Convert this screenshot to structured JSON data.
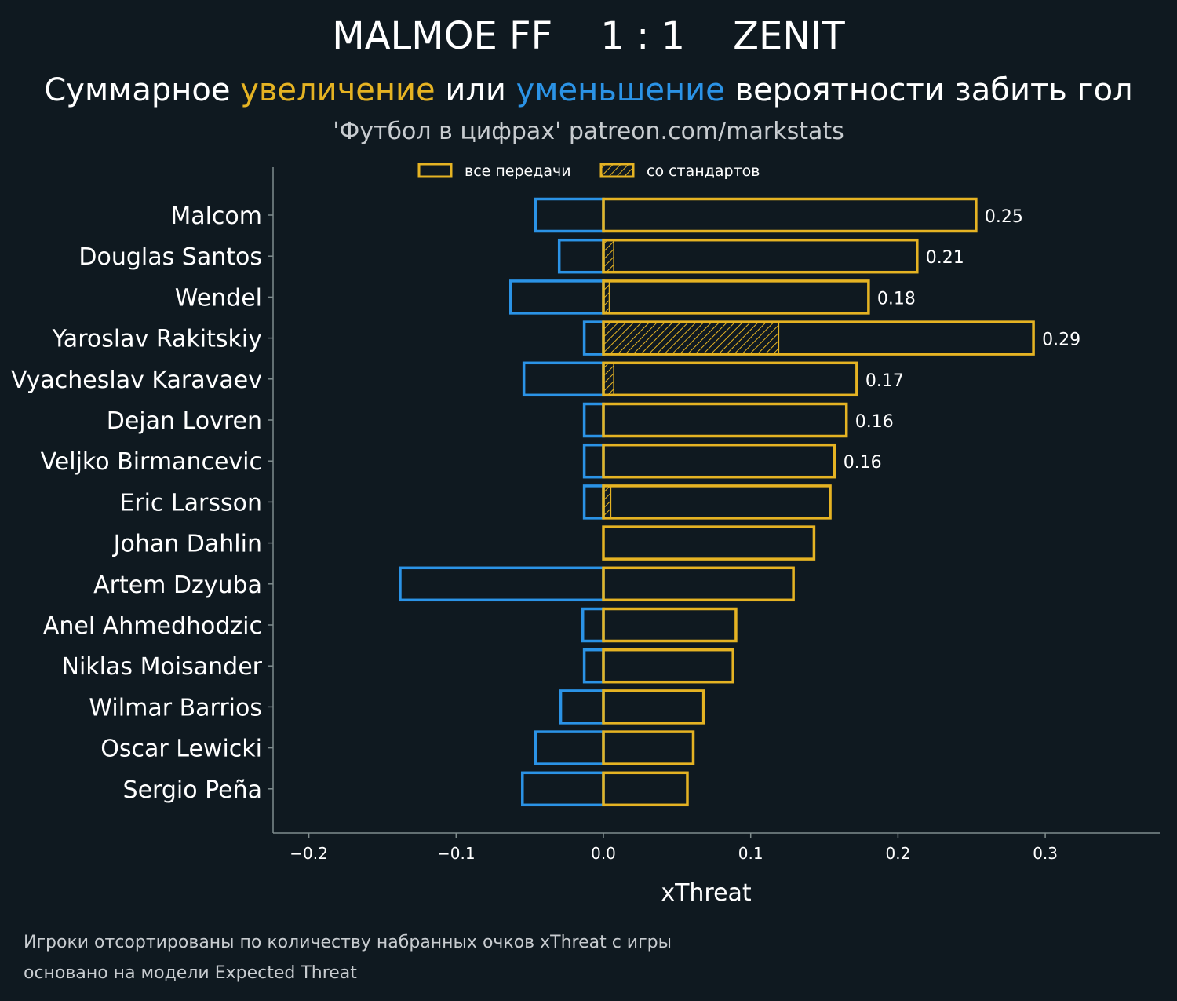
{
  "header": {
    "title": "MALMOE FF    1 : 1    ZENIT",
    "subtitle_part1": "Суммарное ",
    "subtitle_increase": "увеличение",
    "subtitle_part2": " или ",
    "subtitle_decrease": "уменьшение",
    "subtitle_part3": " вероятности забить гол",
    "source": "'Футбол в цифрах' patreon.com/markstats"
  },
  "footer": {
    "line1": "Игроки отсортированы по количеству набранных очков xThreat с игры",
    "line2": "основано на модели Expected Threat"
  },
  "colors": {
    "background": "#0f1920",
    "positive": "#e5b323",
    "negative": "#2b93e6",
    "axis": "#7f8c8d",
    "text": "#ffffff",
    "muted": "#c8ccd0"
  },
  "chart_data": {
    "type": "bar",
    "orientation": "horizontal",
    "xlabel": "xThreat",
    "xlim": [
      -0.225,
      0.378
    ],
    "xticks": [
      -0.2,
      -0.1,
      0.0,
      0.1,
      0.2,
      0.3
    ],
    "xtick_labels": [
      "−0.2",
      "−0.1",
      "0.0",
      "0.1",
      "0.2",
      "0.3"
    ],
    "legend": {
      "position": "top",
      "entries": [
        {
          "label": "все передачи",
          "style": "outline"
        },
        {
          "label": "со стандартов",
          "style": "hatched"
        }
      ]
    },
    "categories": [
      "Malcom",
      "Douglas Santos",
      "Wendel",
      "Yaroslav Rakitskiy",
      "Vyacheslav Karavaev",
      "Dejan Lovren",
      "Veljko Birmancevic",
      "Eric Larsson",
      "Johan Dahlin",
      "Artem Dzyuba",
      "Anel Ahmedhodzic",
      "Niklas Moisander",
      "Wilmar Barrios",
      "Oscar Lewicki",
      "Sergio Peña"
    ],
    "series": [
      {
        "name": "увеличение (все передачи)",
        "values": [
          0.253,
          0.213,
          0.18,
          0.292,
          0.172,
          0.165,
          0.157,
          0.154,
          0.143,
          0.129,
          0.09,
          0.088,
          0.068,
          0.061,
          0.057
        ]
      },
      {
        "name": "увеличение (со стандартов)",
        "values": [
          0,
          0.007,
          0.004,
          0.119,
          0.007,
          0,
          0,
          0.005,
          0,
          0,
          0,
          0,
          0,
          0,
          0
        ]
      },
      {
        "name": "уменьшение",
        "values": [
          -0.046,
          -0.03,
          -0.063,
          -0.013,
          -0.054,
          -0.013,
          -0.013,
          -0.013,
          0,
          -0.138,
          -0.014,
          -0.013,
          -0.029,
          -0.046,
          -0.055
        ]
      }
    ],
    "data_labels": [
      "0.25",
      "0.21",
      "0.18",
      "0.29",
      "0.17",
      "0.16",
      "0.16",
      "",
      "",
      "",
      "",
      "",
      "",
      "",
      ""
    ]
  }
}
